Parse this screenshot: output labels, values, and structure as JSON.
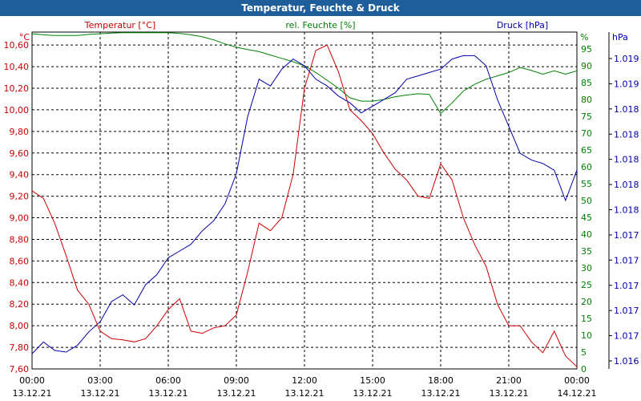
{
  "window": {
    "title": "Temperatur, Feuchte & Druck"
  },
  "colors": {
    "temperature": "#cc0000",
    "humidity": "#008000",
    "pressure": "#0000aa",
    "axis": "#000000",
    "grid": "#000000"
  },
  "chart_data": {
    "type": "line",
    "title": "Temperatur, Feuchte & Druck",
    "time_hours": [
      0,
      0.5,
      1,
      1.5,
      2,
      2.5,
      3,
      3.5,
      4,
      4.5,
      5,
      5.5,
      6,
      6.5,
      7,
      7.5,
      8,
      8.5,
      9,
      9.5,
      10,
      10.5,
      11,
      11.5,
      12,
      12.5,
      13,
      13.5,
      14,
      14.5,
      15,
      15.5,
      16,
      16.5,
      17,
      17.5,
      18,
      18.5,
      19,
      19.5,
      20,
      20.5,
      21,
      21.5,
      22,
      22.5,
      23,
      23.5,
      24
    ],
    "x_tick_labels": [
      {
        "time": "00:00",
        "date": "13.12.21"
      },
      {
        "time": "03:00",
        "date": "13.12.21"
      },
      {
        "time": "06:00",
        "date": "13.12.21"
      },
      {
        "time": "09:00",
        "date": "13.12.21"
      },
      {
        "time": "12:00",
        "date": "13.12.21"
      },
      {
        "time": "15:00",
        "date": "13.12.21"
      },
      {
        "time": "18:00",
        "date": "13.12.21"
      },
      {
        "time": "21:00",
        "date": "13.12.21"
      },
      {
        "time": "00:00",
        "date": "14.12.21"
      }
    ],
    "axes": {
      "temperature": {
        "label": "Temperatur [°C]",
        "unit": "°C",
        "ylim": [
          7.6,
          10.72
        ],
        "ticks": [
          "7,60",
          "7,80",
          "8,00",
          "8,20",
          "8,40",
          "8,60",
          "8,80",
          "9,00",
          "9,20",
          "9,40",
          "9,60",
          "9,80",
          "10,00",
          "10,20",
          "10,40",
          "10,60"
        ]
      },
      "humidity": {
        "label": "rel. Feuchte [%]",
        "unit": "%",
        "ylim": [
          0,
          100
        ],
        "ticks": [
          "0",
          "5",
          "10",
          "15",
          "20",
          "25",
          "30",
          "35",
          "40",
          "45",
          "50",
          "55",
          "60",
          "65",
          "70",
          "75",
          "80",
          "85",
          "90",
          "95"
        ]
      },
      "pressure": {
        "label": "Druck [hPa]",
        "unit": "hPa",
        "ticks": [
          "1.016",
          "1.017",
          "1.017",
          "1.017",
          "1.017",
          "1.017",
          "1.018",
          "1.018",
          "1.018",
          "1.018",
          "1.018",
          "1.019",
          "1.019"
        ]
      }
    },
    "series": [
      {
        "name": "Temperatur",
        "axis": "temperature",
        "values": [
          9.25,
          9.18,
          8.95,
          8.65,
          8.33,
          8.2,
          7.95,
          7.88,
          7.87,
          7.85,
          7.88,
          8.0,
          8.15,
          8.25,
          7.95,
          7.93,
          7.98,
          8.0,
          8.1,
          8.5,
          8.95,
          8.88,
          9.0,
          9.4,
          10.2,
          10.55,
          10.6,
          10.35,
          10.0,
          9.9,
          9.78,
          9.6,
          9.45,
          9.35,
          9.2,
          9.18,
          9.5,
          9.35,
          9.0,
          8.75,
          8.55,
          8.2,
          8.0,
          8.0,
          7.85,
          7.75,
          7.95,
          7.72,
          7.62
        ]
      },
      {
        "name": "rel. Feuchte",
        "axis": "humidity",
        "values": [
          99.5,
          99.2,
          99,
          99,
          99,
          99.3,
          99.5,
          99.7,
          99.8,
          99.8,
          99.8,
          99.8,
          99.8,
          99.6,
          99.2,
          98.6,
          97.7,
          96.5,
          95.5,
          94.8,
          94.2,
          93.2,
          92.2,
          91.2,
          90.0,
          88.0,
          85.7,
          83.3,
          80.5,
          79.5,
          79.5,
          80.0,
          80.8,
          81.3,
          81.7,
          81.5,
          75.8,
          79.0,
          82.5,
          84.5,
          86.0,
          87.0,
          88.0,
          89.5,
          88.6,
          87.5,
          88.5,
          87.5,
          88.5
        ]
      },
      {
        "name": "Druck",
        "axis": "pressure",
        "ylim": [
          0,
          100
        ],
        "values": [
          4.5,
          8.0,
          5.5,
          5.0,
          7.0,
          11.0,
          14.0,
          20.0,
          22.0,
          19.0,
          25.0,
          28.0,
          33.0,
          35.0,
          37.0,
          41.0,
          44.0,
          49.0,
          58.0,
          75.0,
          86.0,
          84.0,
          89.0,
          92.0,
          90.0,
          86.0,
          84.0,
          81.0,
          79.0,
          76.0,
          78.0,
          80.0,
          82.0,
          86.0,
          87.0,
          88.0,
          89.0,
          92.0,
          93.0,
          93.0,
          90.0,
          80.0,
          72.0,
          64.0,
          62.0,
          61.0,
          59.0,
          50.0,
          59.0
        ]
      }
    ]
  }
}
